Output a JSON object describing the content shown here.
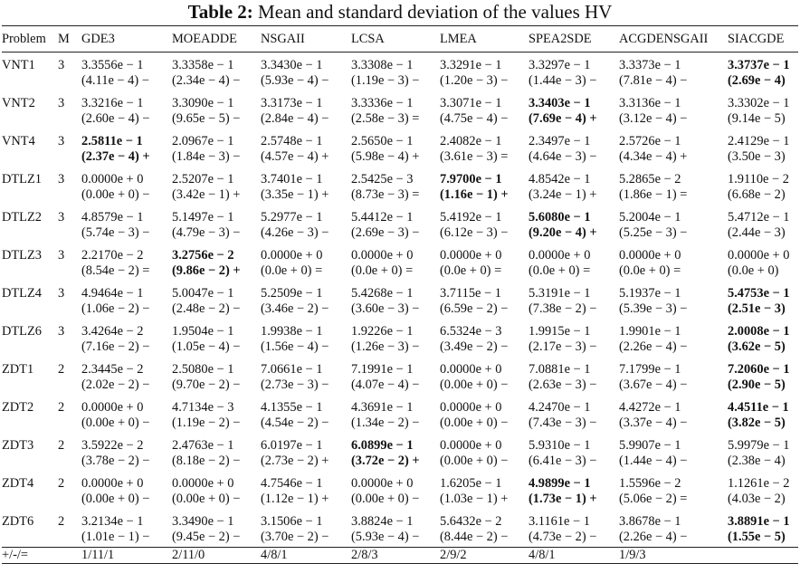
{
  "caption": {
    "label": "Table 2:",
    "text": " Mean and standard deviation of the values HV"
  },
  "headers": [
    "Problem",
    "M",
    "GDE3",
    "MOEADDE",
    "NSGAII",
    "LCSA",
    "LMEA",
    "SPEA2SDE",
    "ACGDENSGAII",
    "SIACGDE"
  ],
  "rows": [
    {
      "problem": "VNT1",
      "m": "3",
      "means": [
        "3.3556e − 1",
        "3.3358e − 1",
        "3.3430e − 1",
        "3.3308e − 1",
        "3.3291e − 1",
        "3.3297e − 1",
        "3.3373e − 1",
        "3.3737e − 1"
      ],
      "stds": [
        "(4.11e − 4) −",
        "(2.34e − 4) −",
        "(5.93e − 4) −",
        "(1.19e − 3) −",
        "(1.20e − 3) −",
        "(1.44e − 3) −",
        "(7.81e − 4) −",
        "(2.69e − 4)"
      ],
      "bold": 7
    },
    {
      "problem": "VNT2",
      "m": "3",
      "means": [
        "3.3216e − 1",
        "3.3090e − 1",
        "3.3173e − 1",
        "3.3336e − 1",
        "3.3071e − 1",
        "3.3403e − 1",
        "3.3136e − 1",
        "3.3302e − 1"
      ],
      "stds": [
        "(2.60e − 4) −",
        "(9.65e − 5) −",
        "(2.84e − 4) −",
        "(2.58e − 3) =",
        "(4.75e − 4) −",
        "(7.69e − 4) +",
        "(3.12e − 4) −",
        "(9.14e − 5)"
      ],
      "bold": 5
    },
    {
      "problem": "VNT4",
      "m": "3",
      "means": [
        "2.5811e − 1",
        "2.0967e − 1",
        "2.5748e − 1",
        "2.5650e − 1",
        "2.4082e − 1",
        "2.3497e − 1",
        "2.5726e − 1",
        "2.4129e − 1"
      ],
      "stds": [
        "(2.37e − 4) +",
        "(1.84e − 3) −",
        "(4.57e − 4) +",
        "(5.98e − 4) +",
        "(3.61e − 3) =",
        "(4.64e − 3) −",
        "(4.34e − 4) +",
        "(3.50e − 3)"
      ],
      "bold": 0
    },
    {
      "problem": "DTLZ1",
      "m": "3",
      "means": [
        "0.0000e + 0",
        "2.5207e − 1",
        "3.7401e − 1",
        "2.5425e − 3",
        "7.9700e − 1",
        "4.8542e − 1",
        "5.2865e − 2",
        "1.9110e − 2"
      ],
      "stds": [
        "(0.00e + 0) −",
        "(3.42e − 1) +",
        "(3.35e − 1) +",
        "(8.73e − 3) =",
        "(1.16e − 1) +",
        "(3.24e − 1) +",
        "(1.86e − 1) =",
        "(6.68e − 2)"
      ],
      "bold": 4
    },
    {
      "problem": "DTLZ2",
      "m": "3",
      "means": [
        "4.8579e − 1",
        "5.1497e − 1",
        "5.2977e − 1",
        "5.4412e − 1",
        "5.4192e − 1",
        "5.6080e − 1",
        "5.2004e − 1",
        "5.4712e − 1"
      ],
      "stds": [
        "(5.74e − 3) −",
        "(4.79e − 3) −",
        "(4.26e − 3) −",
        "(2.69e − 3) −",
        "(6.12e − 3) −",
        "(9.20e − 4) +",
        "(5.25e − 3) −",
        "(2.44e − 3)"
      ],
      "bold": 5
    },
    {
      "problem": "DTLZ3",
      "m": "3",
      "means": [
        "2.2170e − 2",
        "3.2756e − 2",
        "0.0000e + 0",
        "0.0000e + 0",
        "0.0000e + 0",
        "0.0000e + 0",
        "0.0000e + 0",
        "0.0000e + 0"
      ],
      "stds": [
        "(8.54e − 2) =",
        "(9.86e − 2) +",
        "(0.0e + 0) =",
        "(0.0e + 0) =",
        "(0.0e + 0) =",
        "(0.0e + 0) =",
        "(0.0e + 0) =",
        "(0.0e + 0)"
      ],
      "bold": 1
    },
    {
      "problem": "DTLZ4",
      "m": "3",
      "means": [
        "4.9464e − 1",
        "5.0047e − 1",
        "5.2509e − 1",
        "5.4268e − 1",
        "3.7115e − 1",
        "5.3191e − 1",
        "5.1937e − 1",
        "5.4753e − 1"
      ],
      "stds": [
        "(1.06e − 2) −",
        "(2.48e − 2) −",
        "(3.46e − 2) −",
        "(3.60e − 3) −",
        "(6.59e − 2) −",
        "(7.38e − 2) −",
        "(5.39e − 3) −",
        "(2.51e − 3)"
      ],
      "bold": 7
    },
    {
      "problem": "DTLZ6",
      "m": "3",
      "means": [
        "3.4264e − 2",
        "1.9504e − 1",
        "1.9938e − 1",
        "1.9226e − 1",
        "6.5324e − 3",
        "1.9915e − 1",
        "1.9901e − 1",
        "2.0008e − 1"
      ],
      "stds": [
        "(7.16e − 2) −",
        "(1.05e − 4) −",
        "(1.56e − 4) −",
        "(1.26e − 3) −",
        "(3.49e − 2) −",
        "(2.17e − 3) −",
        "(2.26e − 4) −",
        "(3.62e − 5)"
      ],
      "bold": 7
    },
    {
      "problem": "ZDT1",
      "m": "2",
      "means": [
        "2.3445e − 2",
        "2.5080e − 1",
        "7.0661e − 1",
        "7.1991e − 1",
        "0.0000e + 0",
        "7.0881e − 1",
        "7.1799e − 1",
        "7.2060e − 1"
      ],
      "stds": [
        "(2.02e − 2) −",
        "(9.70e − 2) −",
        "(2.73e − 3) −",
        "(4.07e − 4) −",
        "(0.00e + 0) −",
        "(2.63e − 3) −",
        "(3.67e − 4) −",
        "(2.90e − 5)"
      ],
      "bold": 7
    },
    {
      "problem": "ZDT2",
      "m": "2",
      "means": [
        "0.0000e + 0",
        "4.7134e − 3",
        "4.1355e − 1",
        "4.3691e − 1",
        "0.0000e + 0",
        "4.2470e − 1",
        "4.4272e − 1",
        "4.4511e − 1"
      ],
      "stds": [
        "(0.00e + 0) −",
        "(1.19e − 2) −",
        "(4.54e − 2) −",
        "(1.34e − 2) −",
        "(0.00e + 0) −",
        "(7.43e − 3) −",
        "(3.37e − 4) −",
        "(3.82e − 5)"
      ],
      "bold": 7
    },
    {
      "problem": "ZDT3",
      "m": "2",
      "means": [
        "3.5922e − 2",
        "2.4763e − 1",
        "6.0197e − 1",
        "6.0899e − 1",
        "0.0000e + 0",
        "5.9310e − 1",
        "5.9907e − 1",
        "5.9979e − 1"
      ],
      "stds": [
        "(3.78e − 2) −",
        "(8.18e − 2) −",
        "(2.73e − 2) +",
        "(3.72e − 2) +",
        "(0.00e + 0) −",
        "(6.41e − 3) −",
        "(1.44e − 4) −",
        "(2.38e − 4)"
      ],
      "bold": 3
    },
    {
      "problem": "ZDT4",
      "m": "2",
      "means": [
        "0.0000e + 0",
        "0.0000e + 0",
        "4.7546e − 1",
        "0.0000e + 0",
        "1.6205e − 1",
        "4.9899e − 1",
        "1.5596e − 2",
        "1.1261e − 2"
      ],
      "stds": [
        "(0.00e + 0) −",
        "(0.00e + 0) −",
        "(1.12e − 1) +",
        "(0.00e + 0) −",
        "(1.03e − 1) +",
        "(1.73e − 1) +",
        "(5.06e − 2) =",
        "(4.03e − 2)"
      ],
      "bold": 5
    },
    {
      "problem": "ZDT6",
      "m": "2",
      "means": [
        "3.2134e − 1",
        "3.3490e − 1",
        "3.1506e − 1",
        "3.8824e − 1",
        "5.6432e − 2",
        "3.1161e − 1",
        "3.8678e − 1",
        "3.8891e − 1"
      ],
      "stds": [
        "(1.01e − 1) −",
        "(9.45e − 2) −",
        "(3.70e − 2) −",
        "(5.93e − 4) −",
        "(8.44e − 2) −",
        "(4.73e − 2) −",
        "(2.26e − 4) −",
        "(1.55e − 5)"
      ],
      "bold": 7
    }
  ],
  "summary": {
    "label": "+/-/=",
    "values": [
      "1/11/1",
      "2/11/0",
      "4/8/1",
      "2/8/3",
      "2/9/2",
      "4/8/1",
      "1/9/3",
      ""
    ]
  }
}
